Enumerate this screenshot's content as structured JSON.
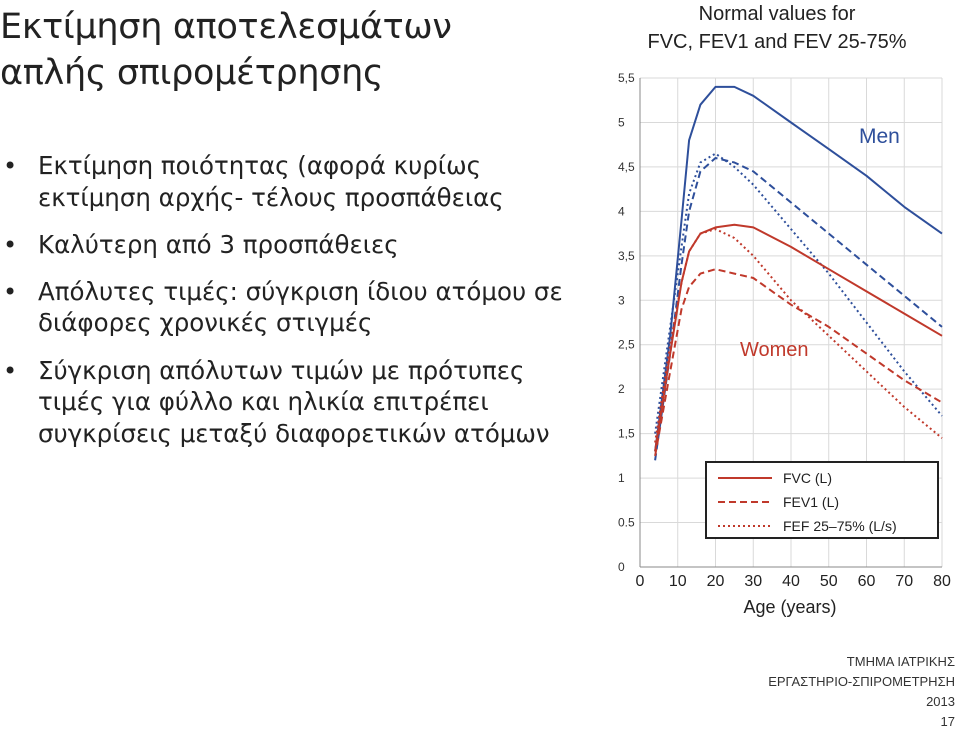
{
  "slide": {
    "title_line1": "Εκτίμηση αποτελεσμάτων",
    "title_line2": "απλής σπιρομέτρησης",
    "bullets": [
      "Εκτίμηση ποιότητας (αφορά κυρίως εκτίμηση αρχής- τέλους προσπάθειας",
      "Καλύτερη από 3 προσπάθειες",
      "Απόλυτες τιμές: σύγκριση ίδιου ατόμου σε διάφορες χρονικές στιγμές",
      "Σύγκριση απόλυτων τιμών με πρότυπες τιμές για φύλλο και ηλικία επιτρέπει συγκρίσεις μεταξύ διαφορετικών ατόμων"
    ]
  },
  "footer": {
    "line1": "ΤΜΗΜΑ ΙΑΤΡΙΚΗΣ",
    "line2": "ΕΡΓΑΣΤΗΡΙΟ-ΣΠΙΡΟΜΕΤΡΗΣΗ",
    "line3": "2013",
    "page_number": "17"
  },
  "chart_data": {
    "type": "line",
    "title_line1": "Normal values for",
    "title_line2": "FVC, FEV1 and FEV 25-75%",
    "xlabel": "Age (years)",
    "ylabel": "",
    "xlim": [
      0,
      80
    ],
    "ylim": [
      0,
      5.5
    ],
    "x_ticks": [
      "0",
      "10",
      "20",
      "30",
      "40",
      "50",
      "60",
      "70",
      "80"
    ],
    "y_ticks": [
      "0",
      "0.5",
      "1",
      "1,5",
      "2",
      "2,5",
      "3",
      "3,5",
      "4",
      "4,5",
      "5",
      "5,5"
    ],
    "grid": true,
    "annotations": [
      {
        "text": "Men",
        "color": "#2e4f9b"
      },
      {
        "text": "Women",
        "color": "#c0392b"
      }
    ],
    "legend": {
      "placement": "bottom-right",
      "entries": [
        {
          "label": "FVC (L)",
          "style": "solid"
        },
        {
          "label": "FEV1 (L)",
          "style": "dashed"
        },
        {
          "label": "FEF 25–75% (L/s)",
          "style": "dotted"
        }
      ]
    },
    "colors": {
      "men": "#2e4f9b",
      "women": "#c0392b",
      "grid": "#d9d9d9"
    },
    "series": [
      {
        "group": "men",
        "style": "solid",
        "x": [
          4,
          8,
          11,
          13,
          16,
          20,
          25,
          30,
          40,
          50,
          60,
          70,
          80
        ],
        "y": [
          1.3,
          2.6,
          3.9,
          4.8,
          5.2,
          5.4,
          5.4,
          5.3,
          5.0,
          4.7,
          4.4,
          4.05,
          3.75
        ]
      },
      {
        "group": "men",
        "style": "dashed",
        "x": [
          4,
          8,
          11,
          13,
          16,
          20,
          25,
          30,
          40,
          50,
          60,
          70,
          80
        ],
        "y": [
          1.2,
          2.4,
          3.4,
          4.0,
          4.45,
          4.6,
          4.55,
          4.45,
          4.1,
          3.75,
          3.4,
          3.05,
          2.7
        ]
      },
      {
        "group": "men",
        "style": "dotted",
        "x": [
          4,
          8,
          11,
          13,
          16,
          20,
          25,
          30,
          40,
          50,
          60,
          70,
          80
        ],
        "y": [
          1.5,
          2.7,
          3.6,
          4.2,
          4.55,
          4.65,
          4.5,
          4.3,
          3.8,
          3.3,
          2.75,
          2.2,
          1.7
        ]
      },
      {
        "group": "women",
        "style": "solid",
        "x": [
          4,
          8,
          11,
          13,
          16,
          20,
          25,
          30,
          40,
          50,
          60,
          70,
          80
        ],
        "y": [
          1.3,
          2.4,
          3.2,
          3.55,
          3.75,
          3.82,
          3.85,
          3.82,
          3.6,
          3.35,
          3.1,
          2.85,
          2.6
        ]
      },
      {
        "group": "women",
        "style": "dashed",
        "x": [
          4,
          8,
          11,
          13,
          16,
          20,
          25,
          30,
          40,
          50,
          60,
          70,
          80
        ],
        "y": [
          1.25,
          2.2,
          2.9,
          3.15,
          3.3,
          3.35,
          3.3,
          3.25,
          2.95,
          2.7,
          2.4,
          2.1,
          1.85
        ]
      },
      {
        "group": "women",
        "style": "dotted",
        "x": [
          4,
          8,
          11,
          13,
          16,
          20,
          25,
          30,
          40,
          50,
          60,
          70,
          80
        ],
        "y": [
          1.4,
          2.5,
          3.2,
          3.55,
          3.75,
          3.8,
          3.7,
          3.5,
          3.0,
          2.6,
          2.2,
          1.8,
          1.45
        ]
      }
    ]
  }
}
